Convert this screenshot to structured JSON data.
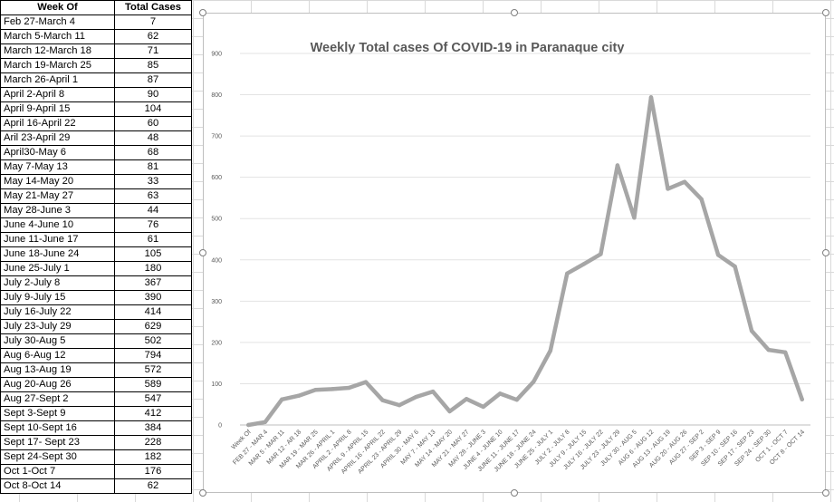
{
  "table": {
    "headers": [
      "Week Of",
      "Total Cases"
    ],
    "rows": [
      [
        "Feb 27-March 4",
        "7"
      ],
      [
        "March 5-March 11",
        "62"
      ],
      [
        "March 12-March 18",
        "71"
      ],
      [
        "March 19-March 25",
        "85"
      ],
      [
        "March 26-April 1",
        "87"
      ],
      [
        "April 2-April 8",
        "90"
      ],
      [
        "April 9-April 15",
        "104"
      ],
      [
        "April 16-April 22",
        "60"
      ],
      [
        "Aril 23-April 29",
        "48"
      ],
      [
        "April30-May 6",
        "68"
      ],
      [
        "May 7-May 13",
        "81"
      ],
      [
        "May 14-May 20",
        "33"
      ],
      [
        "May 21-May 27",
        "63"
      ],
      [
        "May 28-June 3",
        "44"
      ],
      [
        "June 4-June 10",
        "76"
      ],
      [
        "June 11-June 17",
        "61"
      ],
      [
        "June 18-June 24",
        "105"
      ],
      [
        "June 25-July 1",
        "180"
      ],
      [
        "July 2-July 8",
        "367"
      ],
      [
        "July 9-July 15",
        "390"
      ],
      [
        "July 16-July 22",
        "414"
      ],
      [
        "July 23-July 29",
        "629"
      ],
      [
        "July 30-Aug 5",
        "502"
      ],
      [
        "Aug 6-Aug 12",
        "794"
      ],
      [
        "Aug 13-Aug 19",
        "572"
      ],
      [
        "Aug 20-Aug 26",
        "589"
      ],
      [
        "Aug 27-Sept 2",
        "547"
      ],
      [
        "Sept 3-Sept 9",
        "412"
      ],
      [
        "Sept 10-Sept 16",
        "384"
      ],
      [
        "Sept 17- Sept 23",
        "228"
      ],
      [
        "Sept 24-Sept 30",
        "182"
      ],
      [
        "Oct 1-Oct 7",
        "176"
      ],
      [
        "Oct 8-Oct 14",
        "62"
      ]
    ]
  },
  "chart_data": {
    "type": "line",
    "title": "Weekly Total cases Of COVID-19 in Paranaque city",
    "xlabel": "",
    "ylabel": "",
    "ylim": [
      0,
      900
    ],
    "yticks": [
      "0",
      "100",
      "200",
      "300",
      "400",
      "500",
      "600",
      "700",
      "800",
      "900"
    ],
    "grid": true,
    "categories": [
      "Week Of",
      "FEB 27 - MAR 4",
      "MAR 5 - MAR 11",
      "MAR 12 - AR 18",
      "MAR 19 - MAR 25",
      "MAR 26 - APRIL 1",
      "APRIL 2 - APRIL 8",
      "APRIL 9 - APRIL 15",
      "APRIL 16 - APRIL 22",
      "APRIL 23 - APRIL 29",
      "APRIL 30 - MAY 6",
      "MAY 7 - MAY 13",
      "MAY 14 - MAY 20",
      "MAY 21 - MAY 27",
      "MAY 28 - JUNE 3",
      "JUNE 4 - JUNE 10",
      "JUNE 11 - JUNE 17",
      "JUNE 18 - JUNE 24",
      "JUNE 25 - JULY 1",
      "JULY 2 - JULY 8",
      "JULY 9 - JULY 15",
      "JULY 16 - JULY 22",
      "JULY 23 - JULY 29",
      "JULY 30 - AUG 5",
      "AUG 6 - AUG 12",
      "AUG 13 - AUG 19",
      "AUG 20 - AUG 26",
      "AUG 27 - SEP 2",
      "SEP 3 - SEP 9",
      "SEP 10 - SEP 16",
      "SEP 17 - SEP 23",
      "SEP 24 - SEP 30",
      "OCT 1 - OCT 7",
      "OCT 8 - OCT 14"
    ],
    "series": [
      {
        "name": "Total Cases",
        "color": "#a6a6a6",
        "values": [
          0,
          7,
          62,
          71,
          85,
          87,
          90,
          104,
          60,
          48,
          68,
          81,
          33,
          63,
          44,
          76,
          61,
          105,
          180,
          367,
          390,
          414,
          629,
          502,
          794,
          572,
          589,
          547,
          412,
          384,
          228,
          182,
          176,
          62
        ]
      }
    ]
  }
}
